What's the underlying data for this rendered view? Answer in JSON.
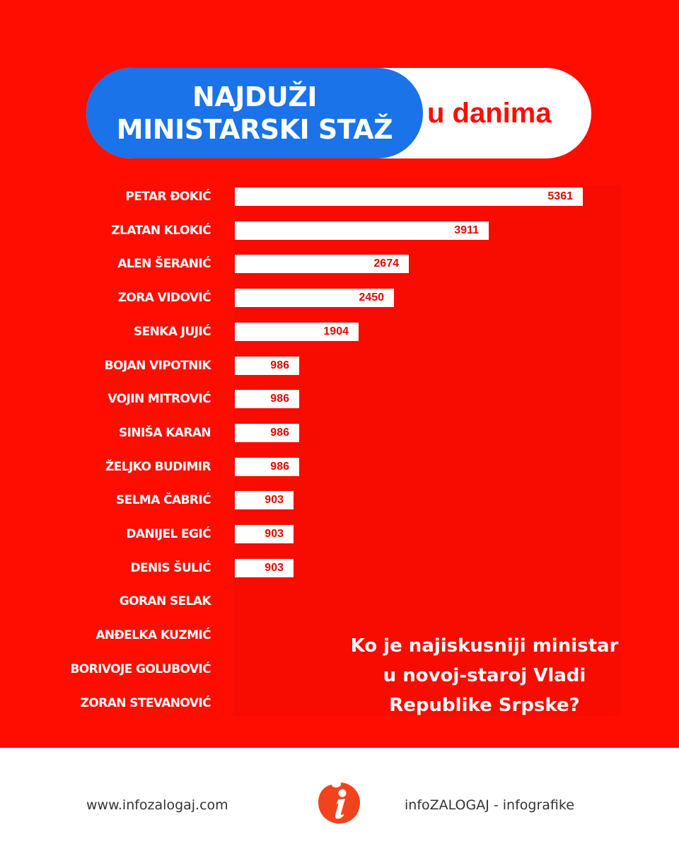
{
  "header": {
    "title_line1": "NAJDUŽI",
    "title_line2": "MINISTARSKI STAŽ",
    "subtitle": "u danima"
  },
  "question": "Ko je najiskusniji ministar u novoj-staroj Vladi Republike Srpske?",
  "footer": {
    "website": "www.infozalogaj.com",
    "brand": "infoZALOGAJ - infografike",
    "logo_icon": "info-i-logo-icon"
  },
  "colors": {
    "background": "#fe0d00",
    "title_blue": "#1a73e8",
    "bar": "#ffffff",
    "value_text": "#e40a00"
  },
  "chart_data": {
    "type": "bar",
    "orientation": "horizontal",
    "title": "NAJDUŽI MINISTARSKI STAŽ u danima",
    "categories": [
      "PETAR ĐOKIĆ",
      "ZLATAN KLOKIĆ",
      "ALEN ŠERANIĆ",
      "ZORA VIDOVIĆ",
      "SENKA JUJIĆ",
      "BOJAN VIPOTNIK",
      "VOJIN MITROVIĆ",
      "SINIŠA KARAN",
      "ŽELJKO BUDIMIR",
      "SELMA ČABRIĆ",
      "DANIJEL EGIĆ",
      "DENIS ŠULIĆ",
      "GORAN SELAK",
      "ANĐELKA KUZMIĆ",
      "BORIVOJE GOLUBOVIĆ",
      "ZORAN STEVANOVIĆ"
    ],
    "values": [
      5361,
      3911,
      2674,
      2450,
      1904,
      986,
      986,
      986,
      986,
      903,
      903,
      903,
      null,
      null,
      null,
      null
    ],
    "value_labels": [
      "5361",
      "3911",
      "2674",
      "2450",
      "1904",
      "986",
      "986",
      "986",
      "986",
      "903",
      "903",
      "903",
      "",
      "",
      "",
      ""
    ],
    "xlim": [
      0,
      5400
    ],
    "grid": false,
    "legend": "none"
  }
}
